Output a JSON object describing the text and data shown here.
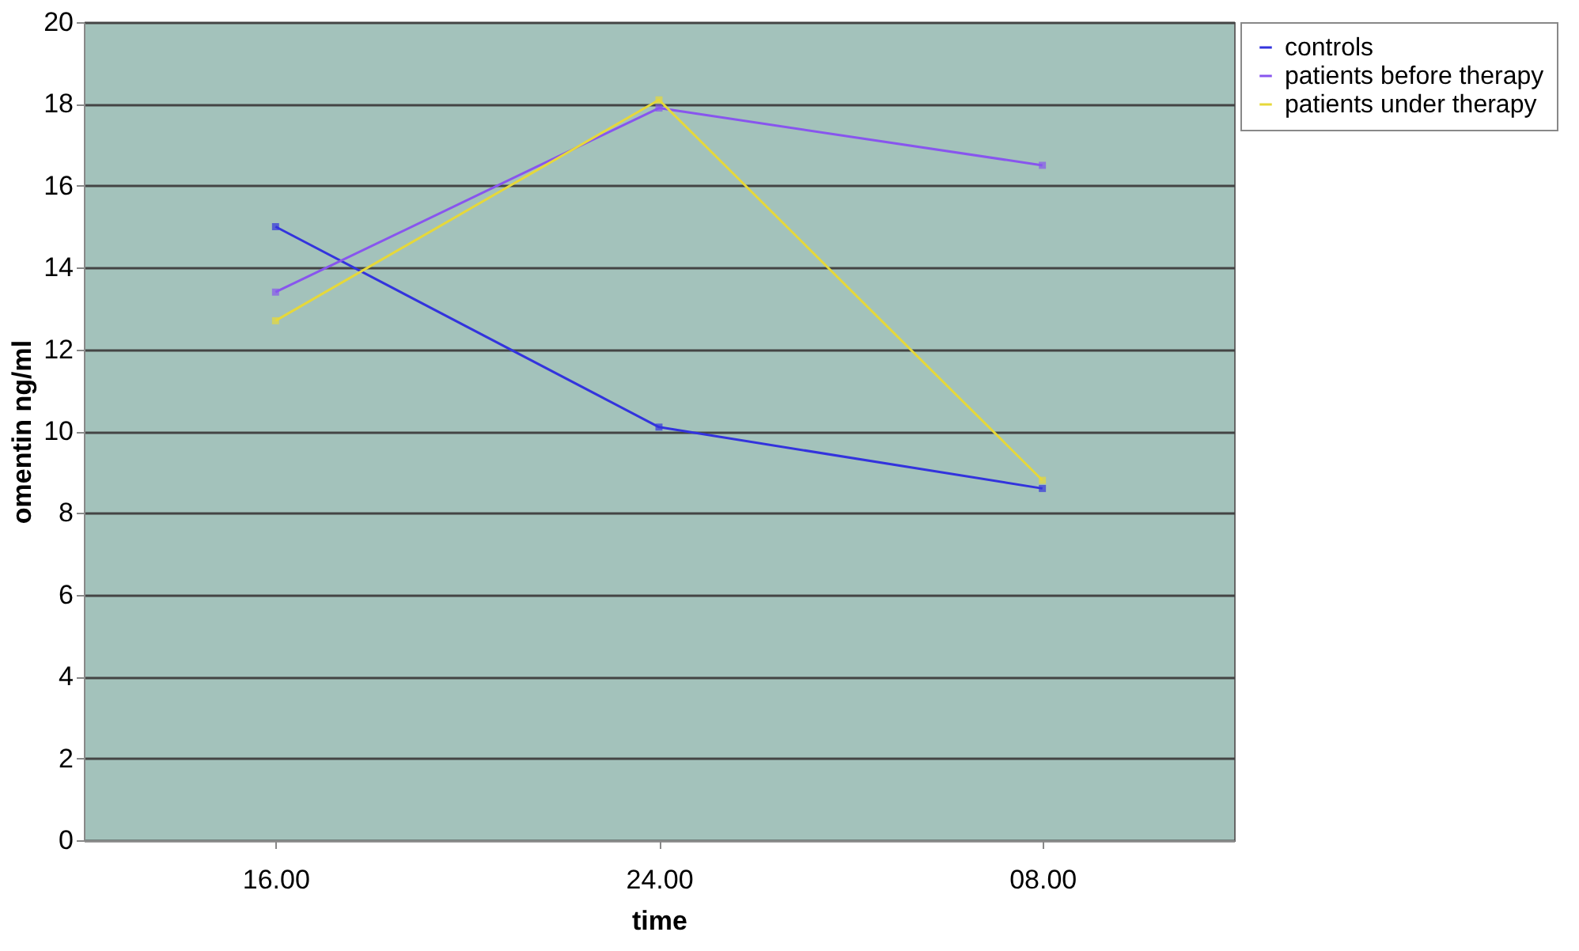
{
  "chart_data": {
    "type": "line",
    "xlabel": "time",
    "ylabel": "omentin ng/ml",
    "categories": [
      "16.00",
      "24.00",
      "08.00"
    ],
    "series": [
      {
        "name": "controls",
        "color": "#3333dd",
        "values": [
          15.0,
          10.1,
          8.6
        ]
      },
      {
        "name": "patients before therapy",
        "color": "#8855ee",
        "values": [
          13.4,
          17.9,
          16.5
        ]
      },
      {
        "name": "patients under therapy",
        "color": "#e6d83a",
        "values": [
          12.7,
          18.1,
          8.8
        ]
      }
    ],
    "ylim": [
      0,
      20
    ],
    "yticks": [
      0,
      2,
      4,
      6,
      8,
      10,
      12,
      14,
      16,
      18,
      20
    ],
    "grid": "y",
    "legend": "right",
    "marker": "square",
    "line_style": "solid"
  }
}
